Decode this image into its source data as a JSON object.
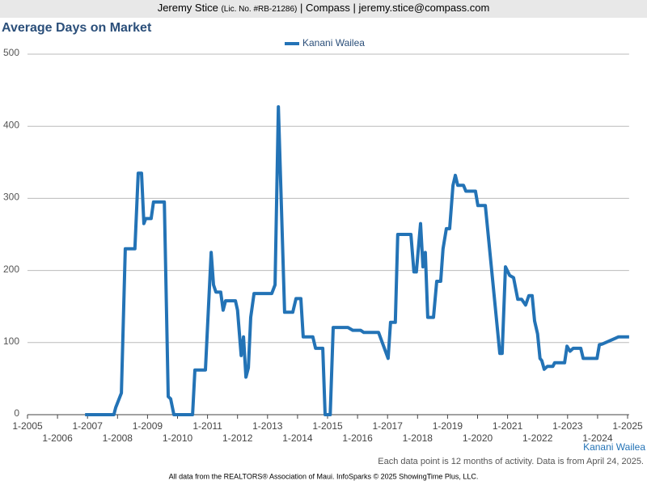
{
  "header": {
    "name": "Jeremy Stice",
    "license": "(Lic. No. #RB-21286)",
    "contact": "| Compass | jeremy.stice@compass.com"
  },
  "chart_data": {
    "type": "line",
    "title": "Average Days on Market",
    "series": [
      {
        "name": "Kanani Wailea",
        "color": "#2373b6",
        "x": [
          2006.92,
          2007.88,
          2007.94,
          2008.13,
          2008.26,
          2008.58,
          2008.69,
          2008.8,
          2008.88,
          2008.94,
          2009.12,
          2009.2,
          2009.56,
          2009.69,
          2009.77,
          2009.88,
          2010.5,
          2010.58,
          2010.93,
          2011.12,
          2011.2,
          2011.28,
          2011.44,
          2011.52,
          2011.6,
          2011.93,
          2012.0,
          2012.12,
          2012.2,
          2012.28,
          2012.36,
          2012.44,
          2012.55,
          2013.14,
          2013.25,
          2013.36,
          2013.44,
          2013.57,
          2013.84,
          2013.95,
          2014.11,
          2014.19,
          2014.51,
          2014.6,
          2014.84,
          2014.92,
          2015.09,
          2015.19,
          2015.68,
          2015.84,
          2016.1,
          2016.21,
          2016.7,
          2017.02,
          2017.1,
          2017.26,
          2017.34,
          2017.78,
          2017.88,
          2017.96,
          2018.1,
          2018.18,
          2018.26,
          2018.34,
          2018.53,
          2018.64,
          2018.77,
          2018.85,
          2018.96,
          2019.07,
          2019.18,
          2019.26,
          2019.34,
          2019.53,
          2019.61,
          2019.93,
          2020.01,
          2020.26,
          2020.74,
          2020.82,
          2020.93,
          2021.07,
          2021.2,
          2021.34,
          2021.47,
          2021.6,
          2021.71,
          2021.82,
          2021.9,
          2022.0,
          2022.08,
          2022.14,
          2022.22,
          2022.33,
          2022.51,
          2022.57,
          2022.9,
          2022.98,
          2023.08,
          2023.19,
          2023.44,
          2023.52,
          2023.98,
          2024.06,
          2024.16,
          2024.7,
          2025.05
        ],
        "values": [
          0,
          0,
          10,
          30,
          230,
          230,
          335,
          335,
          265,
          272,
          272,
          295,
          295,
          25,
          22,
          0,
          0,
          62,
          62,
          225,
          180,
          170,
          170,
          145,
          158,
          158,
          145,
          82,
          108,
          52,
          65,
          135,
          168,
          168,
          180,
          427,
          320,
          142,
          142,
          161,
          161,
          108,
          108,
          92,
          92,
          0,
          0,
          121,
          121,
          117,
          117,
          114,
          114,
          78,
          128,
          128,
          250,
          250,
          198,
          198,
          265,
          205,
          225,
          135,
          135,
          185,
          185,
          230,
          258,
          258,
          318,
          332,
          318,
          318,
          310,
          310,
          290,
          290,
          85,
          85,
          205,
          193,
          190,
          160,
          160,
          152,
          165,
          165,
          130,
          112,
          78,
          75,
          63,
          67,
          67,
          72,
          72,
          95,
          88,
          92,
          92,
          78,
          78,
          97,
          98,
          108,
          108
        ]
      }
    ],
    "xlim": [
      2005,
      2025.05
    ],
    "xticks": [
      {
        "value": 2005,
        "label": "1-2005"
      },
      {
        "value": 2006,
        "label": "1-2006"
      },
      {
        "value": 2007,
        "label": "1-2007"
      },
      {
        "value": 2008,
        "label": "1-2008"
      },
      {
        "value": 2009,
        "label": "1-2009"
      },
      {
        "value": 2010,
        "label": "1-2010"
      },
      {
        "value": 2011,
        "label": "1-2011"
      },
      {
        "value": 2012,
        "label": "1-2012"
      },
      {
        "value": 2013,
        "label": "1-2013"
      },
      {
        "value": 2014,
        "label": "1-2014"
      },
      {
        "value": 2015,
        "label": "1-2015"
      },
      {
        "value": 2016,
        "label": "1-2016"
      },
      {
        "value": 2017,
        "label": "1-2017"
      },
      {
        "value": 2018,
        "label": "1-2018"
      },
      {
        "value": 2019,
        "label": "1-2019"
      },
      {
        "value": 2020,
        "label": "1-2020"
      },
      {
        "value": 2021,
        "label": "1-2021"
      },
      {
        "value": 2022,
        "label": "1-2022"
      },
      {
        "value": 2023,
        "label": "1-2023"
      },
      {
        "value": 2024,
        "label": "1-2024"
      },
      {
        "value": 2025,
        "label": "1-2025"
      }
    ],
    "ylim": [
      0,
      500
    ],
    "yticks": [
      0,
      100,
      200,
      300,
      400,
      500
    ],
    "grid": true,
    "note": "Each data point is 12 months of activity. Data is from April 24, 2025.",
    "source": "All data from the REALTORS® Association of Maui. InfoSparks © 2025 ShowingTime Plus, LLC."
  }
}
